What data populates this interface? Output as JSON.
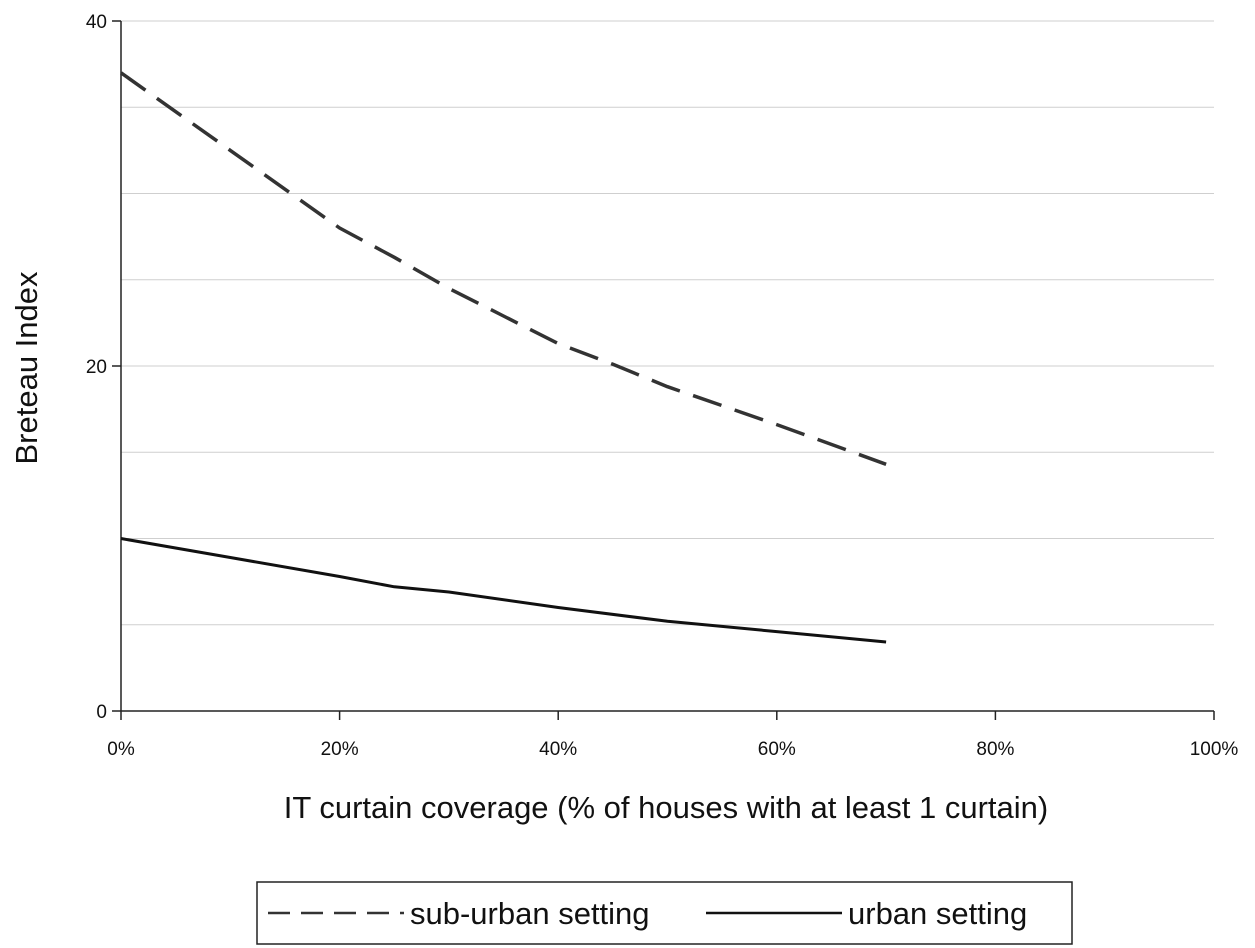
{
  "chart_data": {
    "type": "line",
    "xlabel": "IT curtain coverage (% of houses with at least 1 curtain)",
    "ylabel": "Breteau Index",
    "xlim": [
      0,
      100
    ],
    "ylim": [
      0,
      40
    ],
    "x_ticks": [
      "0%",
      "20%",
      "40%",
      "60%",
      "80%",
      "100%"
    ],
    "y_ticks": [
      "0",
      "20",
      "40"
    ],
    "y_gridlines": [
      5,
      10,
      15,
      20,
      25,
      30,
      35,
      40
    ],
    "grid": true,
    "legend_position": "bottom",
    "series": [
      {
        "name": "sub-urban setting",
        "style": "dashed",
        "color": "#333333",
        "x": [
          0,
          10,
          20,
          25,
          30,
          35,
          40,
          45,
          50,
          60,
          70
        ],
        "y": [
          37.0,
          32.5,
          28.0,
          26.3,
          24.5,
          22.9,
          21.3,
          20.1,
          18.8,
          16.6,
          14.3
        ]
      },
      {
        "name": "urban setting",
        "style": "solid",
        "color": "#111111",
        "x": [
          0,
          10,
          20,
          25,
          30,
          40,
          50,
          60,
          70
        ],
        "y": [
          10.0,
          8.9,
          7.8,
          7.2,
          6.9,
          6.0,
          5.2,
          4.6,
          4.0
        ]
      }
    ]
  }
}
